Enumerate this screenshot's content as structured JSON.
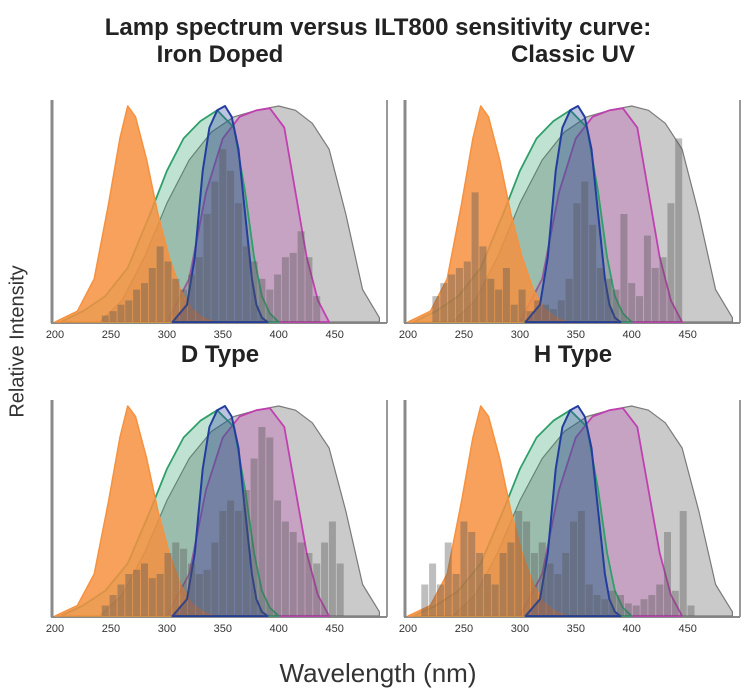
{
  "figure": {
    "title": "Lamp spectrum versus ILT800 sensitivity curve:",
    "ylabel": "Relative Intensity",
    "xlabel": "Wavelength (nm)"
  },
  "colors": {
    "orange": "#f6913f",
    "green": "#2f9f6b",
    "blue": "#233d9f",
    "magenta": "#c040b0",
    "gray": "#7a7a7a",
    "bars": "#555555"
  },
  "chart_data": [
    {
      "type": "area",
      "title": "Iron Doped",
      "xlim": [
        200,
        495
      ],
      "ylim": [
        0,
        1
      ],
      "x_ticks": [
        200,
        250,
        300,
        350,
        400,
        450
      ],
      "series": [
        {
          "x": [
            200,
            220,
            235,
            248,
            258,
            265,
            272,
            282,
            292,
            302,
            312,
            322,
            332,
            342
          ],
          "y": [
            0,
            0.05,
            0.2,
            0.55,
            0.85,
            1.0,
            0.95,
            0.75,
            0.5,
            0.3,
            0.15,
            0.06,
            0.02,
            0
          ]
        },
        {
          "x": [
            205,
            225,
            245,
            265,
            285,
            300,
            315,
            330,
            345,
            360,
            370,
            378,
            385,
            392,
            400
          ],
          "y": [
            0,
            0.05,
            0.12,
            0.25,
            0.5,
            0.7,
            0.85,
            0.93,
            0.98,
            0.9,
            0.6,
            0.3,
            0.12,
            0.04,
            0
          ]
        },
        {
          "x": [
            305,
            318,
            325,
            332,
            338,
            345,
            352,
            358,
            364,
            368,
            372,
            376,
            380,
            385,
            390
          ],
          "y": [
            0,
            0.08,
            0.3,
            0.7,
            0.9,
            0.98,
            1.0,
            0.95,
            0.8,
            0.6,
            0.4,
            0.2,
            0.08,
            0.02,
            0
          ]
        },
        {
          "x": [
            300,
            320,
            335,
            350,
            365,
            380,
            392,
            405,
            415,
            425,
            435,
            445
          ],
          "y": [
            0,
            0.2,
            0.6,
            0.85,
            0.95,
            0.98,
            0.99,
            0.9,
            0.6,
            0.3,
            0.1,
            0
          ]
        },
        {
          "x": [
            240,
            260,
            280,
            300,
            320,
            340,
            360,
            380,
            400,
            415,
            430,
            445,
            460,
            475,
            490
          ],
          "y": [
            0,
            0.1,
            0.3,
            0.55,
            0.75,
            0.88,
            0.95,
            0.98,
            1.0,
            0.98,
            0.92,
            0.8,
            0.5,
            0.15,
            0.02
          ]
        }
      ],
      "bars": {
        "x": [
          245,
          252,
          259,
          266,
          273,
          280,
          287,
          294,
          301,
          308,
          315,
          322,
          329,
          336,
          343,
          350,
          357,
          364,
          371,
          378,
          385,
          392,
          399,
          406,
          413,
          420,
          427,
          434
        ],
        "values": [
          0.03,
          0.05,
          0.08,
          0.1,
          0.15,
          0.18,
          0.25,
          0.35,
          0.28,
          0.2,
          0.15,
          0.22,
          0.3,
          0.5,
          0.65,
          0.8,
          0.7,
          0.55,
          0.35,
          0.28,
          0.2,
          0.15,
          0.22,
          0.3,
          0.32,
          0.42,
          0.3,
          0.12
        ]
      }
    },
    {
      "type": "area",
      "title": "Classic UV",
      "xlim": [
        200,
        495
      ],
      "ylim": [
        0,
        1
      ],
      "x_ticks": [
        200,
        250,
        300,
        350,
        400,
        450
      ],
      "series": [
        {
          "x": [
            200,
            220,
            235,
            248,
            258,
            265,
            272,
            282,
            292,
            302,
            312,
            322,
            332,
            342
          ],
          "y": [
            0,
            0.05,
            0.2,
            0.55,
            0.85,
            1.0,
            0.95,
            0.75,
            0.5,
            0.3,
            0.15,
            0.06,
            0.02,
            0
          ]
        },
        {
          "x": [
            205,
            225,
            245,
            265,
            285,
            300,
            315,
            330,
            345,
            360,
            370,
            378,
            385,
            392,
            400
          ],
          "y": [
            0,
            0.05,
            0.12,
            0.25,
            0.5,
            0.7,
            0.85,
            0.93,
            0.98,
            0.9,
            0.6,
            0.3,
            0.12,
            0.04,
            0
          ]
        },
        {
          "x": [
            305,
            318,
            325,
            332,
            338,
            345,
            352,
            358,
            364,
            368,
            372,
            376,
            380,
            385,
            390
          ],
          "y": [
            0,
            0.08,
            0.3,
            0.7,
            0.9,
            0.98,
            1.0,
            0.95,
            0.8,
            0.6,
            0.4,
            0.2,
            0.08,
            0.02,
            0
          ]
        },
        {
          "x": [
            300,
            320,
            335,
            350,
            365,
            380,
            392,
            405,
            415,
            425,
            435,
            445
          ],
          "y": [
            0,
            0.2,
            0.6,
            0.85,
            0.95,
            0.98,
            0.99,
            0.9,
            0.6,
            0.3,
            0.1,
            0
          ]
        },
        {
          "x": [
            240,
            260,
            280,
            300,
            320,
            340,
            360,
            380,
            400,
            415,
            430,
            445,
            460,
            475,
            490
          ],
          "y": [
            0,
            0.1,
            0.3,
            0.55,
            0.75,
            0.88,
            0.95,
            0.98,
            1.0,
            0.98,
            0.92,
            0.8,
            0.5,
            0.15,
            0.02
          ]
        }
      ],
      "bars": {
        "x": [
          225,
          232,
          239,
          246,
          253,
          260,
          267,
          274,
          281,
          288,
          295,
          302,
          309,
          316,
          323,
          330,
          337,
          344,
          351,
          358,
          365,
          372,
          379,
          386,
          393,
          400,
          407,
          414,
          421,
          428,
          435,
          442
        ],
        "values": [
          0.12,
          0.18,
          0.22,
          0.25,
          0.28,
          0.6,
          0.35,
          0.2,
          0.15,
          0.25,
          0.08,
          0.15,
          0.05,
          0.1,
          0.08,
          0.06,
          0.1,
          0.2,
          0.55,
          0.65,
          0.45,
          0.25,
          0.2,
          0.15,
          0.5,
          0.18,
          0.12,
          0.4,
          0.25,
          0.3,
          0.55,
          0.85
        ]
      }
    },
    {
      "type": "area",
      "title": "D Type",
      "xlim": [
        200,
        495
      ],
      "ylim": [
        0,
        1
      ],
      "x_ticks": [
        200,
        250,
        300,
        350,
        400,
        450
      ],
      "series": [
        {
          "x": [
            200,
            220,
            235,
            248,
            258,
            265,
            272,
            282,
            292,
            302,
            312,
            322,
            332,
            342
          ],
          "y": [
            0,
            0.05,
            0.2,
            0.55,
            0.85,
            1.0,
            0.95,
            0.75,
            0.5,
            0.3,
            0.15,
            0.06,
            0.02,
            0
          ]
        },
        {
          "x": [
            205,
            225,
            245,
            265,
            285,
            300,
            315,
            330,
            345,
            360,
            370,
            378,
            385,
            392,
            400
          ],
          "y": [
            0,
            0.05,
            0.12,
            0.25,
            0.5,
            0.7,
            0.85,
            0.93,
            0.98,
            0.9,
            0.6,
            0.3,
            0.12,
            0.04,
            0
          ]
        },
        {
          "x": [
            305,
            318,
            325,
            332,
            338,
            345,
            352,
            358,
            364,
            368,
            372,
            376,
            380,
            385,
            390
          ],
          "y": [
            0,
            0.08,
            0.3,
            0.7,
            0.9,
            0.98,
            1.0,
            0.95,
            0.8,
            0.6,
            0.4,
            0.2,
            0.08,
            0.02,
            0
          ]
        },
        {
          "x": [
            300,
            320,
            335,
            350,
            365,
            380,
            392,
            405,
            415,
            425,
            435,
            445
          ],
          "y": [
            0,
            0.2,
            0.6,
            0.85,
            0.95,
            0.98,
            0.99,
            0.9,
            0.6,
            0.3,
            0.1,
            0
          ]
        },
        {
          "x": [
            240,
            260,
            280,
            300,
            320,
            340,
            360,
            380,
            400,
            415,
            430,
            445,
            460,
            475,
            490
          ],
          "y": [
            0,
            0.1,
            0.3,
            0.55,
            0.75,
            0.88,
            0.95,
            0.98,
            1.0,
            0.98,
            0.92,
            0.8,
            0.5,
            0.15,
            0.02
          ]
        }
      ],
      "bars": {
        "x": [
          245,
          252,
          259,
          266,
          273,
          280,
          287,
          294,
          301,
          308,
          315,
          322,
          329,
          336,
          343,
          350,
          357,
          364,
          371,
          378,
          385,
          392,
          399,
          406,
          413,
          420,
          427,
          434,
          441,
          448,
          455
        ],
        "values": [
          0.05,
          0.1,
          0.15,
          0.2,
          0.22,
          0.25,
          0.18,
          0.2,
          0.3,
          0.35,
          0.32,
          0.25,
          0.2,
          0.22,
          0.35,
          0.5,
          0.55,
          0.5,
          0.6,
          0.75,
          0.9,
          0.85,
          0.55,
          0.45,
          0.4,
          0.35,
          0.3,
          0.25,
          0.35,
          0.45,
          0.25
        ]
      }
    },
    {
      "type": "area",
      "title": "H Type",
      "xlim": [
        200,
        495
      ],
      "ylim": [
        0,
        1
      ],
      "x_ticks": [
        200,
        250,
        300,
        350,
        400,
        450
      ],
      "series": [
        {
          "x": [
            200,
            220,
            235,
            248,
            258,
            265,
            272,
            282,
            292,
            302,
            312,
            322,
            332,
            342
          ],
          "y": [
            0,
            0.05,
            0.2,
            0.55,
            0.85,
            1.0,
            0.95,
            0.75,
            0.5,
            0.3,
            0.15,
            0.06,
            0.02,
            0
          ]
        },
        {
          "x": [
            205,
            225,
            245,
            265,
            285,
            300,
            315,
            330,
            345,
            360,
            370,
            378,
            385,
            392,
            400
          ],
          "y": [
            0,
            0.05,
            0.12,
            0.25,
            0.5,
            0.7,
            0.85,
            0.93,
            0.98,
            0.9,
            0.6,
            0.3,
            0.12,
            0.04,
            0
          ]
        },
        {
          "x": [
            305,
            318,
            325,
            332,
            338,
            345,
            352,
            358,
            364,
            368,
            372,
            376,
            380,
            385,
            390
          ],
          "y": [
            0,
            0.08,
            0.3,
            0.7,
            0.9,
            0.98,
            1.0,
            0.95,
            0.8,
            0.6,
            0.4,
            0.2,
            0.08,
            0.02,
            0
          ]
        },
        {
          "x": [
            300,
            320,
            335,
            350,
            365,
            380,
            392,
            405,
            415,
            425,
            435,
            445
          ],
          "y": [
            0,
            0.2,
            0.6,
            0.85,
            0.95,
            0.98,
            0.99,
            0.9,
            0.6,
            0.3,
            0.1,
            0
          ]
        },
        {
          "x": [
            240,
            260,
            280,
            300,
            320,
            340,
            360,
            380,
            400,
            415,
            430,
            445,
            460,
            475,
            490
          ],
          "y": [
            0,
            0.1,
            0.3,
            0.55,
            0.75,
            0.88,
            0.95,
            0.98,
            1.0,
            0.98,
            0.92,
            0.8,
            0.5,
            0.15,
            0.02
          ]
        }
      ],
      "bars": {
        "x": [
          215,
          222,
          229,
          236,
          243,
          250,
          257,
          264,
          271,
          278,
          285,
          292,
          299,
          306,
          313,
          320,
          327,
          334,
          341,
          348,
          355,
          362,
          369,
          376,
          383,
          390,
          397,
          404,
          411,
          418,
          425,
          432,
          439,
          446,
          453
        ],
        "values": [
          0.15,
          0.25,
          0.15,
          0.35,
          0.2,
          0.45,
          0.4,
          0.3,
          0.2,
          0.15,
          0.3,
          0.35,
          0.5,
          0.45,
          0.3,
          0.35,
          0.25,
          0.2,
          0.3,
          0.45,
          0.5,
          0.15,
          0.1,
          0.08,
          0.12,
          0.1,
          0.06,
          0.05,
          0.08,
          0.1,
          0.15,
          0.4,
          0.12,
          0.5,
          0.05
        ]
      }
    }
  ]
}
